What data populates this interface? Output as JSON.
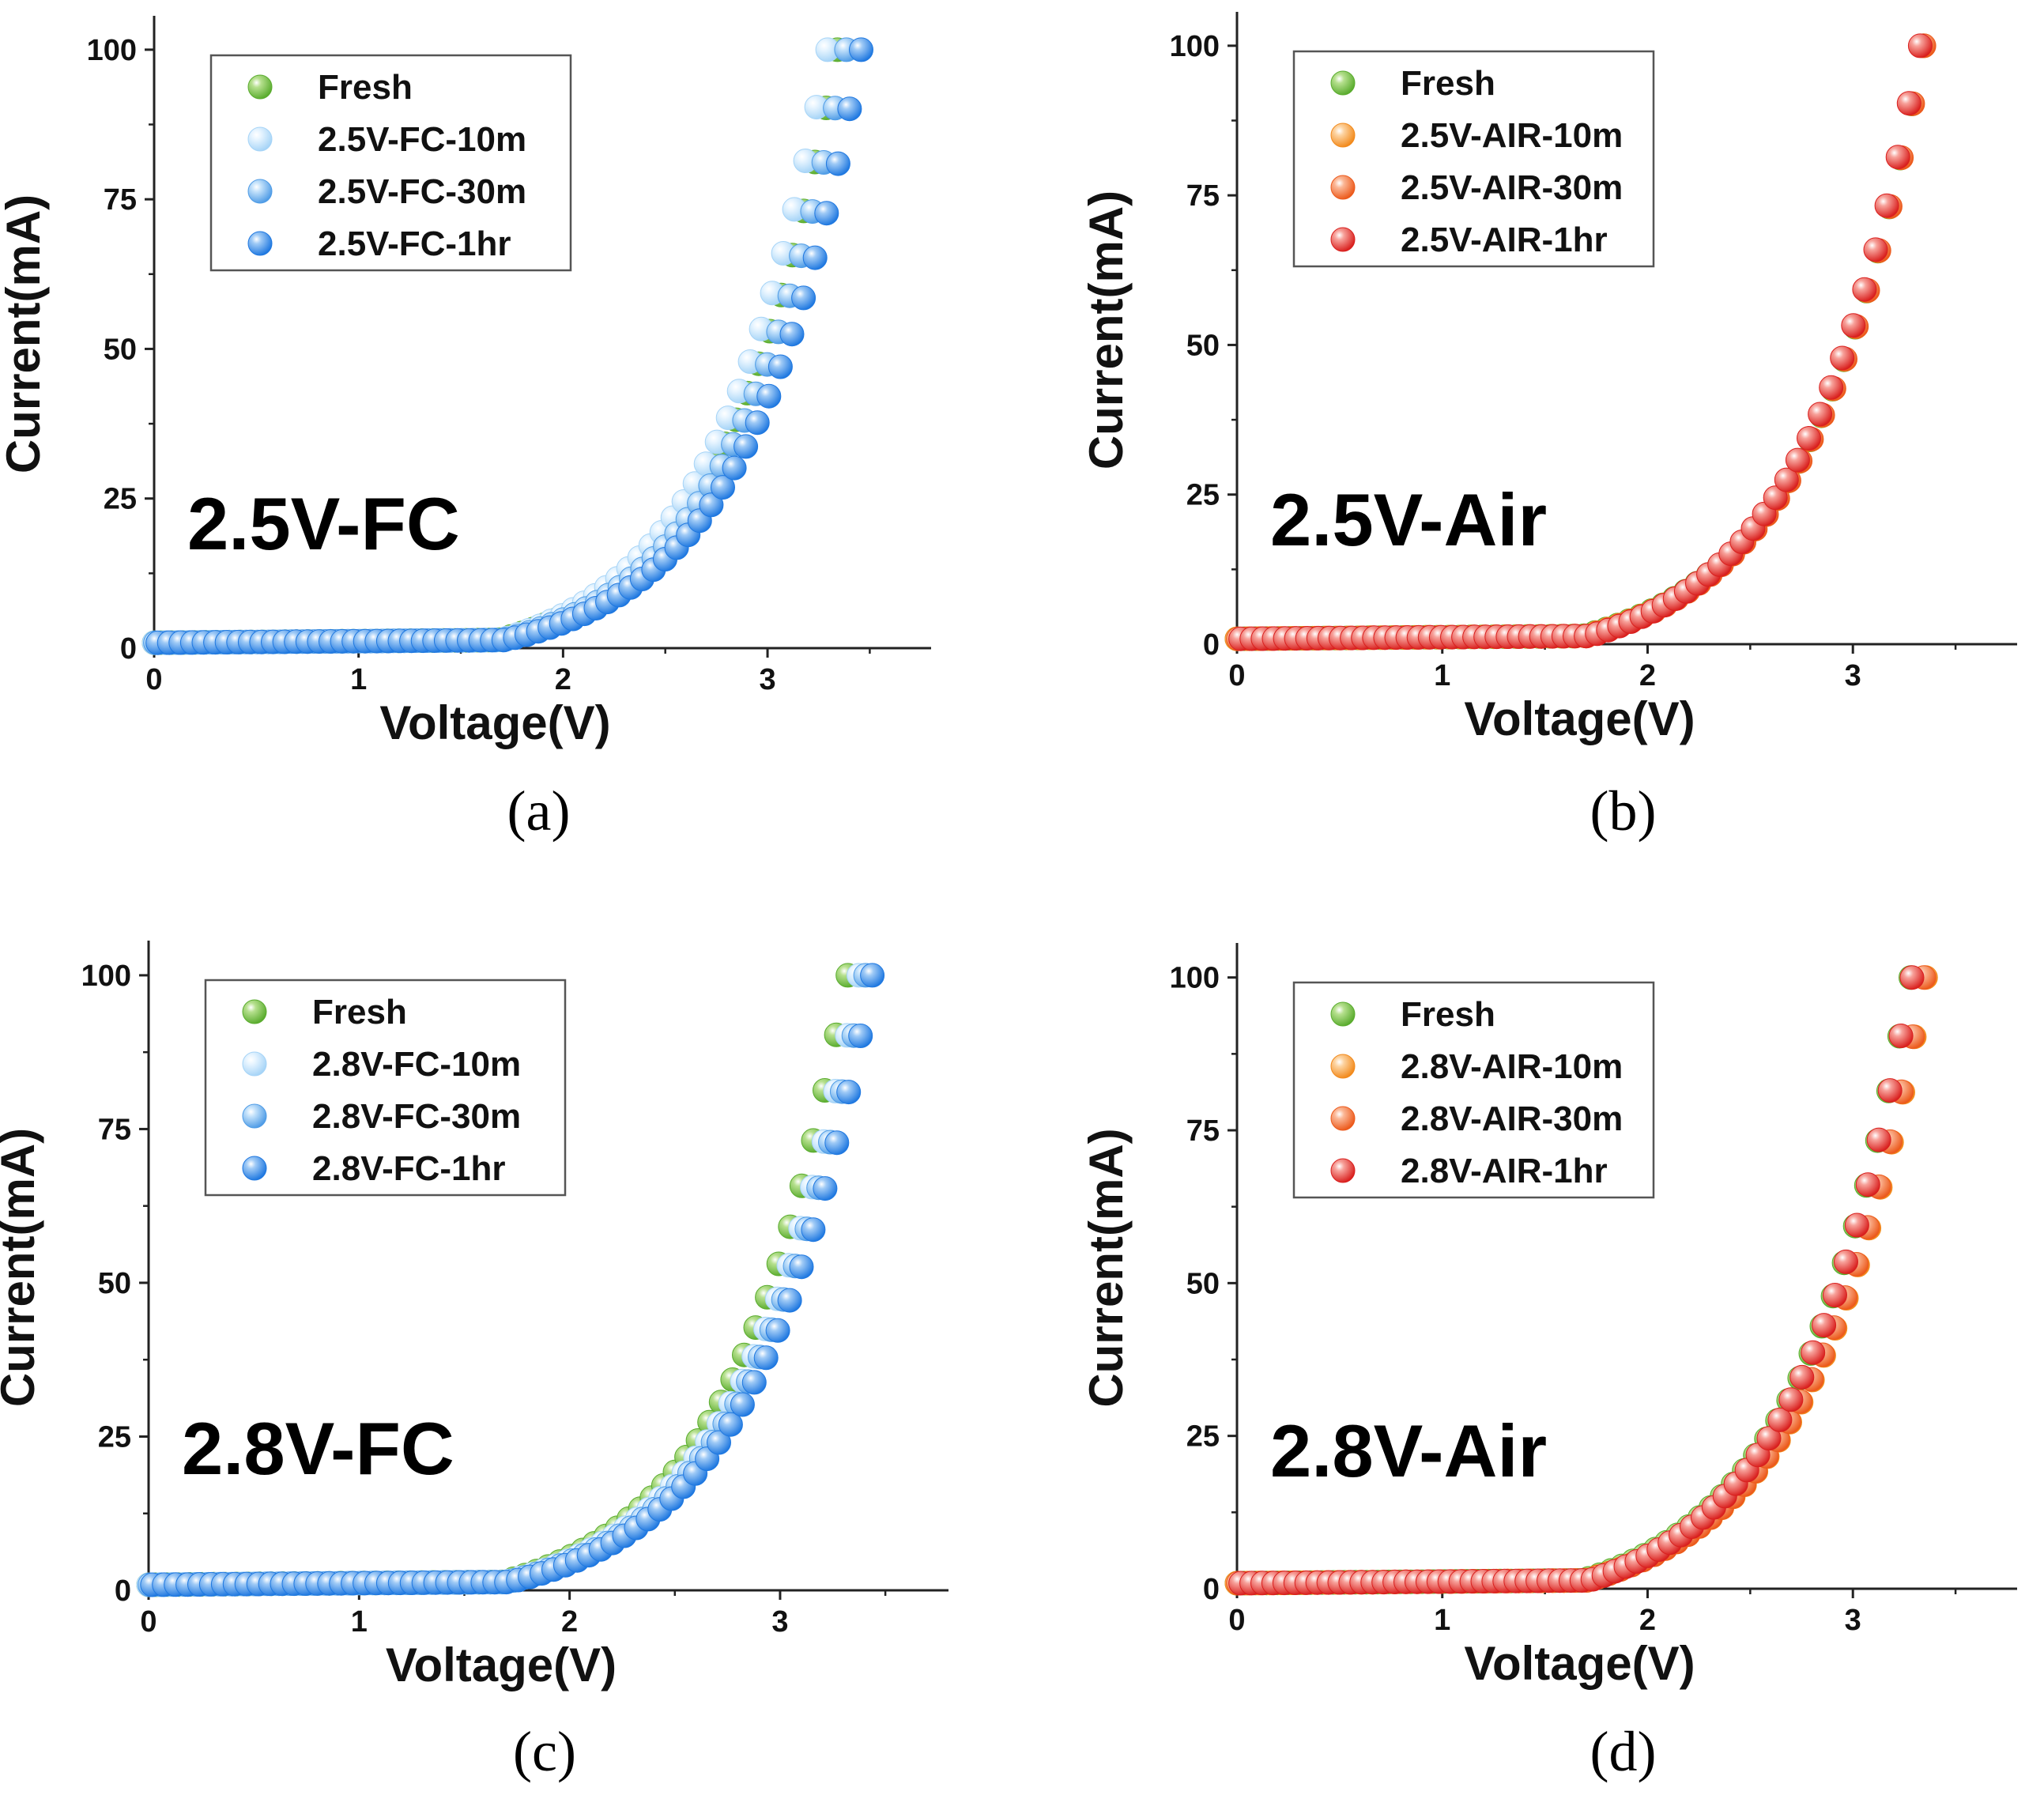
{
  "figure": {
    "panel_labels": [
      "(a)",
      "(b)",
      "(c)",
      "(d)"
    ]
  },
  "chart_data": [
    {
      "type": "scatter",
      "panel": "(a)",
      "inset_label": "2.5V-FC",
      "xlabel": "Voltage(V)",
      "ylabel": "Current(mA)",
      "xlim": [
        0,
        3.8
      ],
      "ylim": [
        0,
        105
      ],
      "xticks": [
        0,
        1,
        2,
        3
      ],
      "yticks": [
        0,
        25,
        50,
        75,
        100
      ],
      "legend_position": "top-left",
      "vmax": [
        3.36,
        3.3,
        3.38,
        3.44
      ],
      "series": [
        {
          "name": "Fresh",
          "color": "#5aac2e",
          "light": "#b6e08e"
        },
        {
          "name": "2.5V-FC-10m",
          "color": "#a6d4f7",
          "light": "#e8f5ff"
        },
        {
          "name": "2.5V-FC-30m",
          "color": "#4f9ce6",
          "light": "#c4e2fb"
        },
        {
          "name": "2.5V-FC-1hr",
          "color": "#1f78e0",
          "light": "#9fcaf6"
        }
      ]
    },
    {
      "type": "scatter",
      "panel": "(b)",
      "inset_label": "2.5V-Air",
      "xlabel": "Voltage(V)",
      "ylabel": "Current(mA)",
      "xlim": [
        0,
        3.8
      ],
      "ylim": [
        0,
        105
      ],
      "xticks": [
        0,
        1,
        2,
        3
      ],
      "yticks": [
        0,
        25,
        50,
        75,
        100
      ],
      "legend_position": "top-left",
      "vmax": [
        3.36,
        3.35,
        3.34,
        3.31
      ],
      "series": [
        {
          "name": "Fresh",
          "color": "#5aac2e",
          "light": "#b6e08e"
        },
        {
          "name": "2.5V-AIR-10m",
          "color": "#f28a1c",
          "light": "#fdd3a0"
        },
        {
          "name": "2.5V-AIR-30m",
          "color": "#ec5a1c",
          "light": "#fbb796"
        },
        {
          "name": "2.5V-AIR-1hr",
          "color": "#d9201e",
          "light": "#f7a19a"
        }
      ]
    },
    {
      "type": "scatter",
      "panel": "(c)",
      "inset_label": "2.8V-FC",
      "xlabel": "Voltage(V)",
      "ylabel": "Current(mA)",
      "xlim": [
        0,
        3.8
      ],
      "ylim": [
        0,
        105
      ],
      "xticks": [
        0,
        1,
        2,
        3
      ],
      "yticks": [
        0,
        25,
        50,
        75,
        100
      ],
      "legend_position": "top-left",
      "vmax": [
        3.34,
        3.38,
        3.4,
        3.42
      ],
      "series": [
        {
          "name": "Fresh",
          "color": "#5aac2e",
          "light": "#b6e08e"
        },
        {
          "name": "2.8V-FC-10m",
          "color": "#a6d4f7",
          "light": "#e8f5ff"
        },
        {
          "name": "2.8V-FC-30m",
          "color": "#4f9ce6",
          "light": "#c4e2fb"
        },
        {
          "name": "2.8V-FC-1hr",
          "color": "#1f78e0",
          "light": "#9fcaf6"
        }
      ]
    },
    {
      "type": "scatter",
      "panel": "(d)",
      "inset_label": "2.8V-Air",
      "xlabel": "Voltage(V)",
      "ylabel": "Current(mA)",
      "xlim": [
        0,
        3.8
      ],
      "ylim": [
        0,
        105
      ],
      "xticks": [
        0,
        1,
        2,
        3
      ],
      "yticks": [
        0,
        25,
        50,
        75,
        100
      ],
      "legend_position": "top-left",
      "vmax": [
        3.3,
        3.36,
        3.34,
        3.27
      ],
      "series": [
        {
          "name": "Fresh",
          "color": "#5aac2e",
          "light": "#b6e08e"
        },
        {
          "name": "2.8V-AIR-10m",
          "color": "#f28a1c",
          "light": "#fdd3a0"
        },
        {
          "name": "2.8V-AIR-30m",
          "color": "#ec5a1c",
          "light": "#fbb796"
        },
        {
          "name": "2.8V-AIR-1hr",
          "color": "#d9201e",
          "light": "#f7a19a"
        }
      ]
    }
  ]
}
